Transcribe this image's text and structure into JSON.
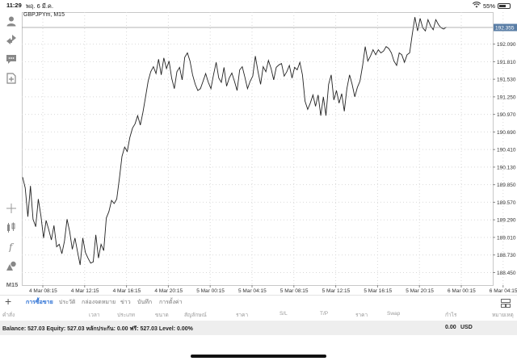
{
  "status_bar": {
    "time": "11:29",
    "date": "พฤ. 6 มี.ค.",
    "battery": "55%",
    "battery_level": 0.55
  },
  "left_toolbar": {
    "items": [
      {
        "icon": "account-icon"
      },
      {
        "icon": "trade-arrows-icon"
      },
      {
        "icon": "chat-icon"
      },
      {
        "icon": "new-order-icon"
      },
      {
        "icon": "crosshair-icon"
      },
      {
        "icon": "indicators-icon"
      },
      {
        "icon": "function-icon"
      },
      {
        "icon": "objects-icon"
      }
    ],
    "timeframe": "M15"
  },
  "chart": {
    "symbol": "GBPJPYm, M15",
    "current_price": "192.355",
    "colors": {
      "line": "#222222",
      "grid": "#d9d9d9",
      "price_tag": "#5a7ea6"
    }
  },
  "chart_data": {
    "type": "line",
    "ylim": [
      188.25,
      192.6
    ],
    "y_ticks": [
      192.09,
      191.81,
      191.53,
      191.25,
      190.97,
      190.69,
      190.41,
      190.13,
      189.85,
      189.57,
      189.29,
      189.01,
      188.73,
      188.45
    ],
    "y_tick_labels": [
      "192.090",
      "191.810",
      "191.530",
      "191.250",
      "190.970",
      "190.690",
      "190.410",
      "190.130",
      "189.850",
      "189.570",
      "189.290",
      "189.010",
      "188.730",
      "188.450"
    ],
    "x_tick_labels": [
      "4 Mar 08:15",
      "4 Mar 12:15",
      "4 Mar 16:15",
      "4 Mar 20:15",
      "5 Mar 00:15",
      "5 Mar 04:15",
      "5 Mar 08:15",
      "5 Mar 12:15",
      "5 Mar 16:15",
      "5 Mar 20:15",
      "6 Mar 00:15",
      "6 Mar 04:15"
    ],
    "bars_per_tick": 16,
    "current_level": 192.355,
    "series": [
      {
        "values": [
          189.97,
          189.8,
          189.34,
          189.83,
          189.3,
          189.18,
          189.62,
          189.35,
          189.0,
          189.28,
          189.13,
          188.97,
          189.2,
          188.86,
          188.9,
          188.75,
          188.95,
          189.3,
          189.1,
          188.82,
          189.0,
          188.78,
          188.57,
          189.0,
          188.77,
          188.68,
          188.6,
          188.62,
          189.05,
          188.68,
          188.9,
          188.8,
          189.32,
          189.42,
          189.6,
          189.55,
          189.62,
          189.95,
          190.3,
          190.45,
          190.38,
          190.6,
          190.75,
          190.82,
          190.95,
          190.8,
          191.0,
          191.25,
          191.5,
          191.65,
          191.73,
          191.62,
          191.85,
          191.6,
          191.87,
          191.7,
          191.82,
          191.55,
          191.38,
          191.65,
          191.72,
          191.52,
          191.88,
          191.95,
          191.82,
          191.6,
          191.45,
          191.35,
          191.38,
          191.5,
          191.62,
          191.48,
          191.38,
          191.6,
          191.8,
          191.55,
          191.48,
          191.72,
          191.42,
          191.55,
          191.63,
          191.5,
          191.35,
          191.68,
          191.73,
          191.56,
          191.38,
          191.5,
          191.58,
          191.9,
          191.65,
          191.45,
          191.73,
          191.65,
          191.83,
          191.7,
          191.52,
          191.72,
          191.76,
          191.78,
          191.58,
          191.65,
          191.75,
          191.55,
          191.72,
          191.68,
          191.8,
          191.6,
          191.18,
          191.05,
          191.15,
          191.28,
          191.1,
          191.28,
          190.95,
          191.25,
          190.95,
          191.45,
          191.6,
          191.2,
          191.35,
          191.15,
          191.3,
          191.02,
          191.38,
          191.6,
          191.45,
          191.25,
          191.4,
          191.5,
          191.75,
          192.05,
          191.82,
          191.9,
          192.0,
          191.92,
          192.0,
          191.95,
          191.98,
          192.05,
          192.02,
          191.95,
          191.82,
          191.75,
          191.95,
          191.92,
          191.8,
          191.92,
          191.95,
          192.25,
          192.52,
          192.3,
          192.5,
          192.35,
          192.3,
          192.48,
          192.38,
          192.32,
          192.48,
          192.4,
          192.35,
          192.33,
          192.36
        ]
      }
    ]
  },
  "bottom_panel": {
    "add_label": "+",
    "tabs": [
      "การซื้อขาย",
      "ประวัติ",
      "กล่องจดหมาย",
      "ข่าว",
      "บันทึก",
      "การตั้งค่า"
    ],
    "active_tab": 0,
    "columns": [
      "คำสั่ง",
      "เวลา",
      "ประเภท",
      "ขนาด",
      "สัญลักษณ์",
      "ราคา",
      "S/L",
      "T/P",
      "ราคา",
      "Swap",
      "กำไร",
      "หมายเหตุ"
    ],
    "balance_text": "Balance: 527.03 Equity: 527.03 หลักประกัน: 0.00 ฟรี: 527.03 Level: 0.00%",
    "profit_total": "0.00",
    "currency": "USD"
  }
}
